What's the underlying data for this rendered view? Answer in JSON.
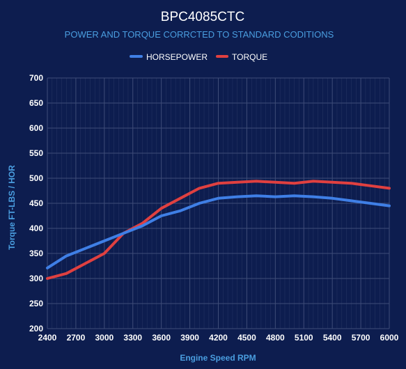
{
  "colors": {
    "background": "#0d1d4f",
    "grid": "#3e4d78",
    "text": "#ffffff",
    "accent_text": "#4a9ee0",
    "horsepower": "#3f7fe6",
    "torque": "#e04040"
  },
  "chart_data": {
    "type": "line",
    "title": "BPC4085CTC",
    "subtitle": "POWER AND TORQUE CORRCTED TO STANDARD CODITIONS",
    "xlabel": "Engine Speed RPM",
    "ylabel": "Torque FT-LBS / HOR",
    "legend_position": "top-center",
    "grid": true,
    "xlim": [
      2400,
      6000
    ],
    "ylim": [
      200,
      700
    ],
    "x_ticks": [
      2400,
      2700,
      3000,
      3300,
      3600,
      3900,
      4200,
      4500,
      4800,
      5100,
      5400,
      5700,
      6000
    ],
    "y_ticks": [
      200,
      250,
      300,
      350,
      400,
      450,
      500,
      550,
      600,
      650,
      700
    ],
    "x": [
      2400,
      2600,
      2800,
      3000,
      3200,
      3400,
      3600,
      3800,
      4000,
      4200,
      4400,
      4600,
      4800,
      5000,
      5200,
      5400,
      5600,
      5800,
      6000
    ],
    "series": [
      {
        "name": "HORSEPOWER",
        "color": "#3f7fe6",
        "values": [
          321,
          345,
          360,
          375,
          390,
          405,
          425,
          435,
          450,
          460,
          463,
          465,
          463,
          465,
          463,
          460,
          455,
          450,
          445
        ]
      },
      {
        "name": "TORQUE",
        "color": "#e04040",
        "values": [
          300,
          310,
          330,
          350,
          390,
          410,
          440,
          460,
          480,
          490,
          492,
          494,
          492,
          490,
          494,
          492,
          490,
          485,
          480
        ]
      }
    ]
  }
}
